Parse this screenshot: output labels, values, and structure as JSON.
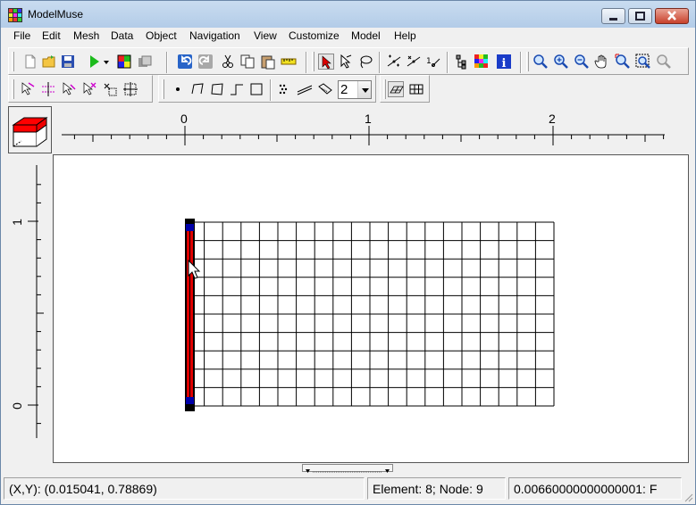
{
  "window": {
    "title": "ModelMuse"
  },
  "menu": [
    {
      "id": "file",
      "label": "File"
    },
    {
      "id": "edit",
      "label": "Edit"
    },
    {
      "id": "mesh",
      "label": "Mesh"
    },
    {
      "id": "data",
      "label": "Data"
    },
    {
      "id": "object",
      "label": "Object"
    },
    {
      "id": "navigation",
      "label": "Navigation"
    },
    {
      "id": "view",
      "label": "View"
    },
    {
      "id": "customize",
      "label": "Customize"
    },
    {
      "id": "model",
      "label": "Model"
    },
    {
      "id": "help",
      "label": "Help"
    }
  ],
  "toolbar": {
    "vertex_spin_value": "2"
  },
  "icons": {
    "row1": [
      "new-file-icon",
      "open-folder-icon",
      "save-icon",
      "run-model-icon",
      "dropdown-arrow-icon",
      "colors-icon",
      "images-icon",
      "undo-icon",
      "redo-icon",
      "cut-icon",
      "copy-icon",
      "paste-icon",
      "ruler-measure-icon",
      "select-arrow-icon",
      "lasso-select-icon",
      "lasso-free-icon",
      "add-vertex-icon",
      "delete-vertex-icon",
      "number-vertex-icon",
      "hierarchy-icon",
      "color-grid-icon",
      "info-icon",
      "zoom-icon",
      "zoom-in-icon",
      "zoom-out-icon",
      "pan-hand-icon",
      "zoom-extent-icon",
      "zoom-window-icon",
      "restore-default-icon"
    ],
    "row2": [
      "mesh-pointer-icon",
      "split-element-icon",
      "move-node-icon",
      "delete-node-icon",
      "refine-mesh-icon",
      "mesh-grid-icon",
      "point-object-icon",
      "line-object-icon",
      "polygon-object-icon",
      "straight-line-icon",
      "rectangle-icon",
      "dotted-pattern-icon",
      "parallel-lines-icon",
      "parallelogram-icon",
      "shear-grid-icon",
      "grid-cell-icon"
    ]
  },
  "rulers": {
    "horizontal": [
      "0",
      "1",
      "2"
    ],
    "vertical": [
      "1",
      "0"
    ]
  },
  "colors": {
    "mesh_line": "#000000",
    "boundary_red": "#ff0000",
    "boundary_blue": "#0000aa",
    "title_bar": "#bcd3ec"
  },
  "status": {
    "coordinates": "(X,Y): (0.015041, 0.78869)",
    "element_node": "Element: 8; Node: 9",
    "value": "0.00660000000000001: F"
  }
}
